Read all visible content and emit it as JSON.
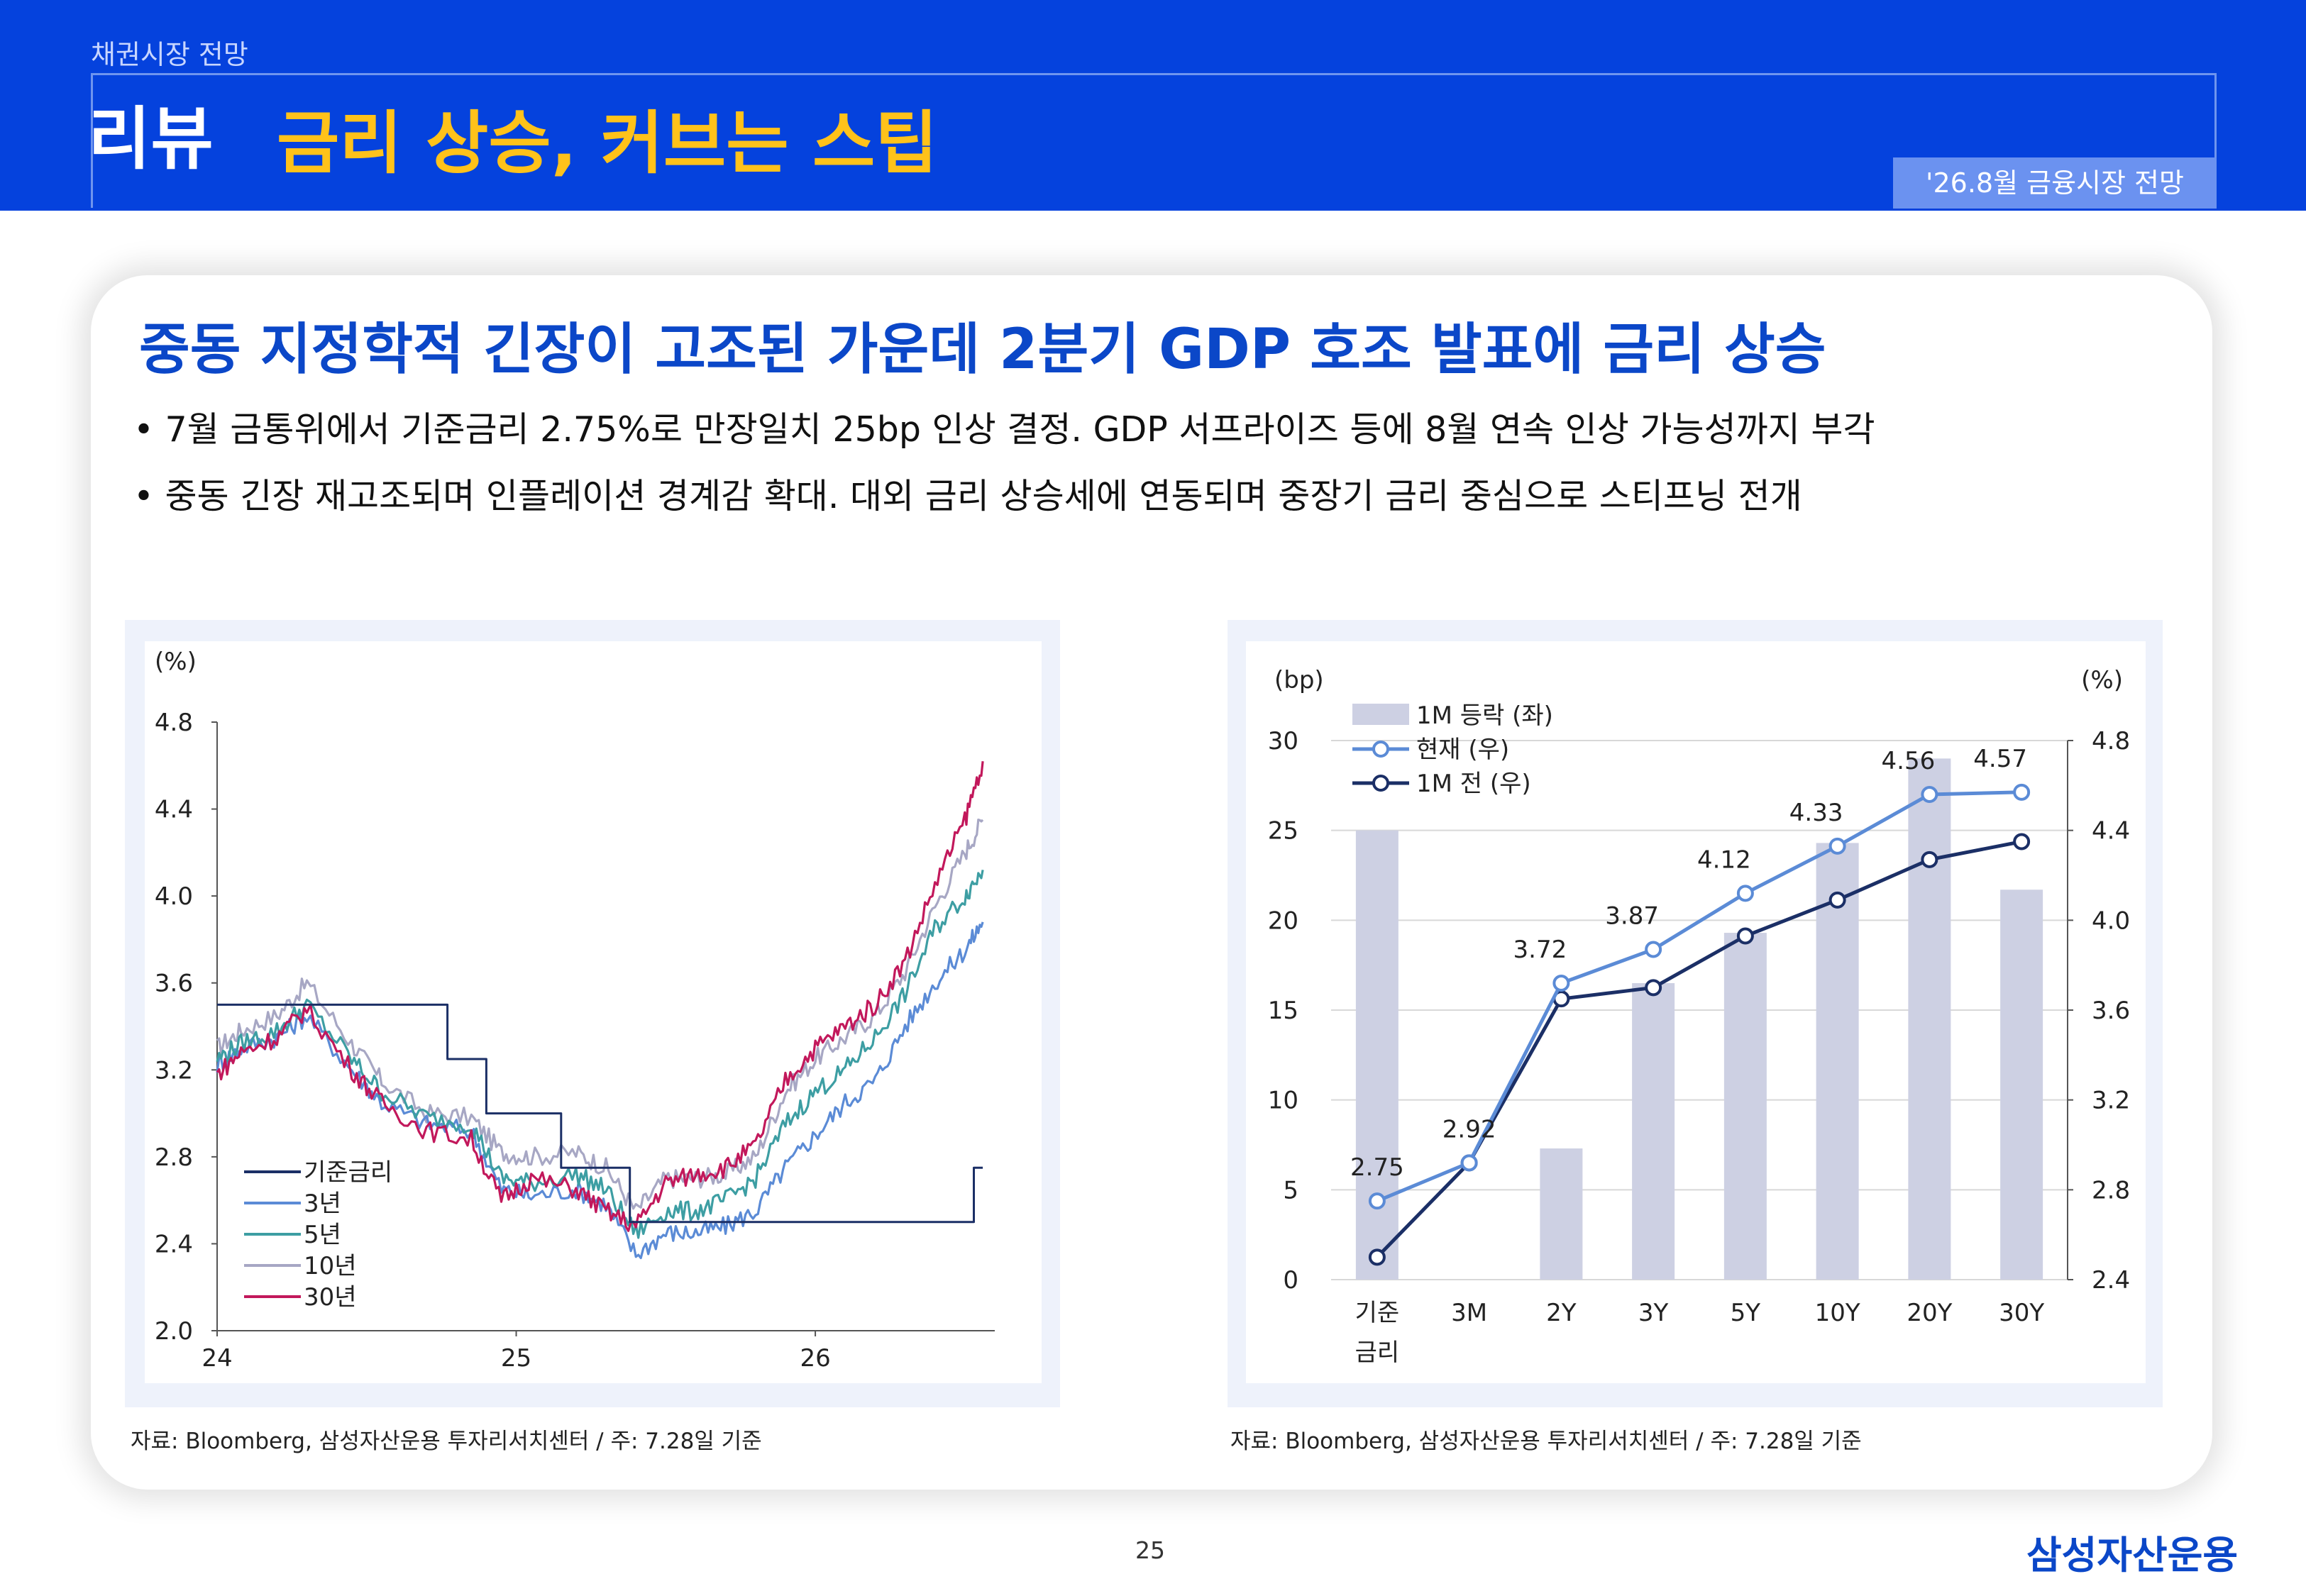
{
  "header": {
    "section_label": "채권시장 전망",
    "title": "리뷰",
    "subtitle": "금리 상승, 커브는 스팁",
    "tag": "'26.8월 금융시장 전망"
  },
  "content": {
    "headline": "중동 지정학적 긴장이 고조된 가운데 2분기 GDP 호조 발표에 금리 상승",
    "bullets": [
      "• 7월 금통위에서 기준금리 2.75%로 만장일치 25bp 인상 결정. GDP 서프라이즈 등에 8월 연속 인상 가능성까지 부각",
      "• 중동 긴장 재고조되며 인플레이션 경계감 확대. 대외 금리 상승세에 연동되며 중장기 금리 중심으로 스티프닝 전개"
    ]
  },
  "footer": {
    "page_number": "25",
    "brand": "삼성자산운용"
  },
  "chart_data": [
    {
      "type": "line",
      "ylabel": "(%)",
      "ylim": [
        2.0,
        4.8
      ],
      "yticks": [
        "4.8",
        "4.4",
        "4.0",
        "3.6",
        "3.2",
        "2.8",
        "2.4",
        "2.0"
      ],
      "xlim": [
        24.0,
        26.6
      ],
      "xticks": [
        "24",
        "25",
        "26"
      ],
      "legend_position": "bottom-left",
      "colors": {
        "base": "#1b2f66",
        "y3": "#5b8bd6",
        "y5": "#3d9ea3",
        "y10": "#a7a7c4",
        "y30": "#c2185b"
      },
      "series": [
        {
          "name": "기준금리",
          "key": "base",
          "x": [
            24.0,
            24.77,
            24.77,
            24.9,
            24.9,
            25.15,
            25.15,
            25.38,
            25.38,
            26.53,
            26.53,
            26.56
          ],
          "values": [
            3.5,
            3.5,
            3.25,
            3.25,
            3.0,
            3.0,
            2.75,
            2.75,
            2.5,
            2.5,
            2.75,
            2.75
          ]
        },
        {
          "name": "3년",
          "key": "y3",
          "x": [
            24.0,
            24.08,
            24.2,
            24.3,
            24.45,
            24.55,
            24.7,
            24.85,
            24.95,
            25.05,
            25.2,
            25.3,
            25.4,
            25.5,
            25.6,
            25.7,
            25.8,
            25.9,
            26.0,
            26.1,
            26.2,
            26.3,
            26.4,
            26.5,
            26.56
          ],
          "values": [
            3.22,
            3.3,
            3.35,
            3.45,
            3.2,
            3.05,
            2.95,
            2.92,
            2.65,
            2.62,
            2.65,
            2.58,
            2.35,
            2.45,
            2.45,
            2.48,
            2.55,
            2.75,
            2.9,
            3.05,
            3.15,
            3.4,
            3.6,
            3.75,
            3.88
          ]
        },
        {
          "name": "5년",
          "key": "y5",
          "x": [
            24.0,
            24.08,
            24.2,
            24.3,
            24.45,
            24.55,
            24.7,
            24.85,
            24.95,
            25.05,
            25.2,
            25.3,
            25.4,
            25.5,
            25.6,
            25.7,
            25.8,
            25.9,
            26.0,
            26.1,
            26.2,
            26.3,
            26.4,
            26.5,
            26.56
          ],
          "values": [
            3.25,
            3.32,
            3.38,
            3.5,
            3.25,
            3.1,
            2.98,
            2.95,
            2.7,
            2.68,
            2.72,
            2.65,
            2.45,
            2.55,
            2.55,
            2.6,
            2.7,
            2.95,
            3.1,
            3.2,
            3.35,
            3.55,
            3.85,
            4.0,
            4.12
          ]
        },
        {
          "name": "10년",
          "key": "y10",
          "x": [
            24.0,
            24.08,
            24.2,
            24.3,
            24.45,
            24.55,
            24.7,
            24.85,
            24.95,
            25.05,
            25.2,
            25.3,
            25.4,
            25.5,
            25.6,
            25.7,
            25.8,
            25.9,
            26.0,
            26.1,
            26.2,
            26.3,
            26.4,
            26.5,
            26.56
          ],
          "values": [
            3.3,
            3.38,
            3.45,
            3.6,
            3.32,
            3.15,
            3.0,
            2.98,
            2.82,
            2.8,
            2.82,
            2.75,
            2.55,
            2.7,
            2.7,
            2.72,
            2.8,
            3.1,
            3.25,
            3.35,
            3.45,
            3.65,
            3.95,
            4.2,
            4.35
          ]
        },
        {
          "name": "30년",
          "key": "y30",
          "x": [
            24.0,
            24.08,
            24.2,
            24.3,
            24.45,
            24.55,
            24.7,
            24.85,
            24.95,
            25.05,
            25.2,
            25.3,
            25.4,
            25.5,
            25.6,
            25.7,
            25.8,
            25.9,
            26.0,
            26.1,
            26.2,
            26.3,
            26.4,
            26.5,
            26.56
          ],
          "values": [
            3.18,
            3.28,
            3.35,
            3.48,
            3.2,
            3.05,
            2.92,
            2.88,
            2.6,
            2.7,
            2.65,
            2.55,
            2.48,
            2.68,
            2.72,
            2.75,
            2.85,
            3.15,
            3.3,
            3.4,
            3.5,
            3.7,
            4.05,
            4.35,
            4.62
          ]
        }
      ]
    },
    {
      "type": "bar",
      "categories": [
        "기준 금리",
        "3M",
        "2Y",
        "3Y",
        "5Y",
        "10Y",
        "20Y",
        "30Y"
      ],
      "category_lines": [
        [
          "기준",
          "금리"
        ],
        [
          "3M"
        ],
        [
          "2Y"
        ],
        [
          "3Y"
        ],
        [
          "5Y"
        ],
        [
          "10Y"
        ],
        [
          "20Y"
        ],
        [
          "30Y"
        ]
      ],
      "ylabel_left": "(bp)",
      "ylabel_right": "(%)",
      "ylim_left": [
        0,
        30
      ],
      "yticks_left": [
        "0",
        "5",
        "10",
        "15",
        "20",
        "25",
        "30"
      ],
      "ylim_right": [
        2.4,
        4.8
      ],
      "yticks_right": [
        "2.4",
        "2.8",
        "3.2",
        "3.6",
        "4.0",
        "4.4",
        "4.8"
      ],
      "legend_position": "top-left",
      "colors": {
        "bar": "#cdd0e3",
        "current": "#5b8bd6",
        "prev": "#1b2f66"
      },
      "series": [
        {
          "name": "1M 등락 (좌)",
          "kind": "bar",
          "axis": "left",
          "values": [
            25,
            0,
            7.3,
            16.5,
            19.3,
            24.3,
            29,
            21.7
          ]
        },
        {
          "name": "현재 (우)",
          "kind": "line",
          "axis": "right",
          "values": [
            2.75,
            2.92,
            3.72,
            3.87,
            4.12,
            4.33,
            4.56,
            4.57
          ]
        },
        {
          "name": "1M 전 (우)",
          "kind": "line",
          "axis": "right",
          "values": [
            2.5,
            2.92,
            3.65,
            3.7,
            3.93,
            4.09,
            4.27,
            4.35
          ]
        }
      ],
      "data_labels": [
        "2.75",
        "2.92",
        "3.72",
        "3.87",
        "4.12",
        "4.33",
        "4.56",
        "4.57"
      ]
    }
  ],
  "sources": [
    "자료: Bloomberg, 삼성자산운용 투자리서치센터 / 주: 7.28일 기준",
    "자료: Bloomberg, 삼성자산운용 투자리서치센터 / 주: 7.28일 기준"
  ]
}
